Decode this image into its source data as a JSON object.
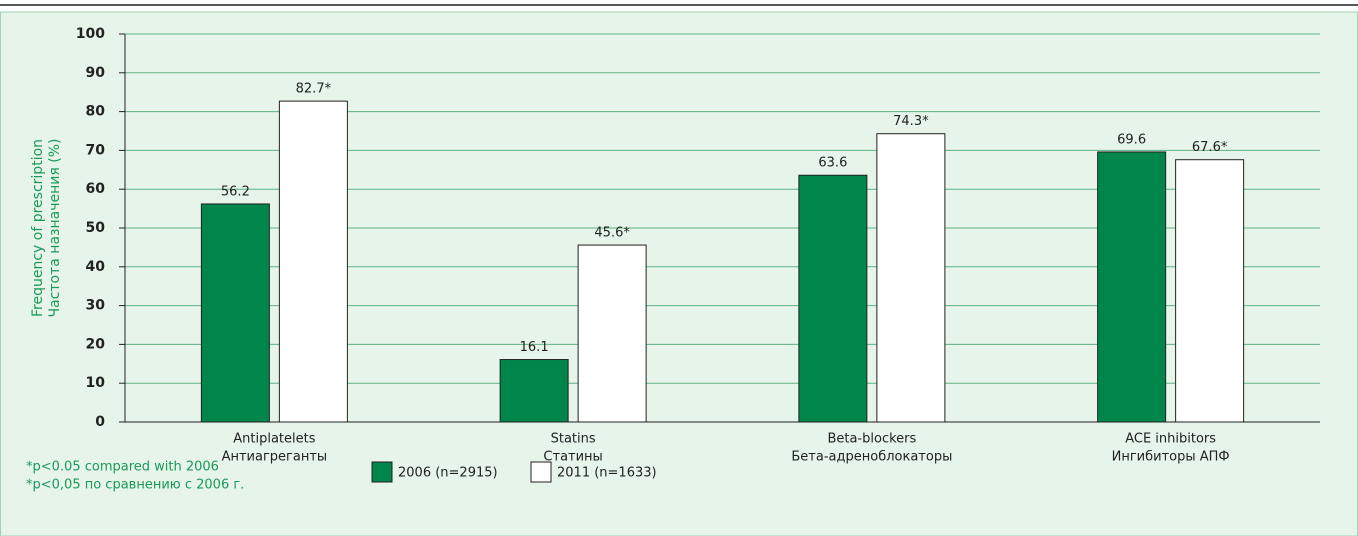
{
  "chart_data": {
    "type": "bar",
    "y_label": [
      "Frequency of prescription",
      "Частота назначения (%)"
    ],
    "categories": [
      [
        "Antiplatelets",
        "Антиагреганты"
      ],
      [
        "Statins",
        "Статины"
      ],
      [
        "Beta-blockers",
        "Бета-адреноблокаторы"
      ],
      [
        "ACE inhibitors",
        "Ингибиторы АПФ"
      ]
    ],
    "series": [
      {
        "name": "2006 (n=2915)",
        "color": "#00854a",
        "values": [
          56.2,
          16.1,
          63.6,
          69.6
        ]
      },
      {
        "name": "2011 (n=1633)",
        "color": "#ffffff",
        "values": [
          82.7,
          45.6,
          74.3,
          67.6
        ],
        "value_labels": [
          "82.7*",
          "45.6*",
          "74.3*",
          "67.6*"
        ]
      }
    ],
    "ylim": [
      0,
      100
    ],
    "yticks": [
      0,
      10,
      20,
      30,
      40,
      50,
      60,
      70,
      80,
      90,
      100
    ],
    "grid": true,
    "annotations": [
      "*p<0.05 compared with 2006",
      "*p<0,05 по сравнению с 2006 г."
    ]
  }
}
